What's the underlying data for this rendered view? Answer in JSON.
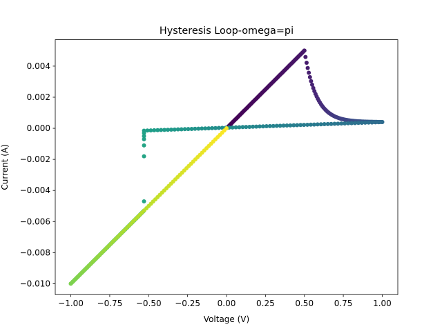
{
  "chart_data": {
    "type": "scatter",
    "title": "Hysteresis Loop-omega=pi",
    "xlabel": "Voltage (V)",
    "ylabel": "Current (A)",
    "xlim": [
      -1.1,
      1.1
    ],
    "ylim": [
      -0.0107,
      0.0057
    ],
    "xticks": [
      -1.0,
      -0.75,
      -0.5,
      -0.25,
      0.0,
      0.25,
      0.5,
      0.75,
      1.0
    ],
    "xtick_labels": [
      "−1.00",
      "−0.75",
      "−0.50",
      "−0.25",
      "0.00",
      "0.25",
      "0.50",
      "0.75",
      "1.00"
    ],
    "yticks": [
      -0.01,
      -0.008,
      -0.006,
      -0.004,
      -0.002,
      0.0,
      0.002,
      0.004
    ],
    "ytick_labels": [
      "−0.010",
      "−0.008",
      "−0.006",
      "−0.004",
      "−0.002",
      "0.000",
      "0.002",
      "0.004"
    ],
    "grid": false,
    "colormap": "viridis",
    "color_encodes": "time order",
    "segments": [
      {
        "desc": "rise",
        "shape": "line",
        "x0": 0.0,
        "x1": 0.5,
        "y0": 0.0,
        "y1": 0.005,
        "c0": 0.0,
        "c1": 0.06
      },
      {
        "desc": "decay",
        "shape": "decay",
        "x0": 0.5,
        "x1": 1.0,
        "y0": 0.005,
        "y1": 0.0004,
        "c0": 0.07,
        "c1": 0.33
      },
      {
        "desc": "return",
        "shape": "line",
        "x0": 1.0,
        "x1": -0.53,
        "y0": 0.0004,
        "y1": -0.00015,
        "c0": 0.35,
        "c1": 0.56
      },
      {
        "desc": "switch",
        "shape": "line",
        "x0": -0.53,
        "x1": -1.0,
        "y0": -0.0053,
        "y1": -0.01,
        "c0": 0.6,
        "c1": 0.8
      },
      {
        "desc": "final",
        "shape": "line",
        "x0": -1.0,
        "x1": 0.0,
        "y0": -0.01,
        "y1": 0.0,
        "c0": 0.8,
        "c1": 1.0
      }
    ],
    "isolated_points": [
      {
        "x": -0.53,
        "y": -0.0003,
        "c": 0.57
      },
      {
        "x": -0.53,
        "y": -0.0005,
        "c": 0.57
      },
      {
        "x": -0.53,
        "y": -0.0007,
        "c": 0.57
      },
      {
        "x": -0.53,
        "y": -0.0011,
        "c": 0.58
      },
      {
        "x": -0.53,
        "y": -0.0018,
        "c": 0.58
      },
      {
        "x": -0.53,
        "y": -0.0047,
        "c": 0.59
      }
    ]
  }
}
